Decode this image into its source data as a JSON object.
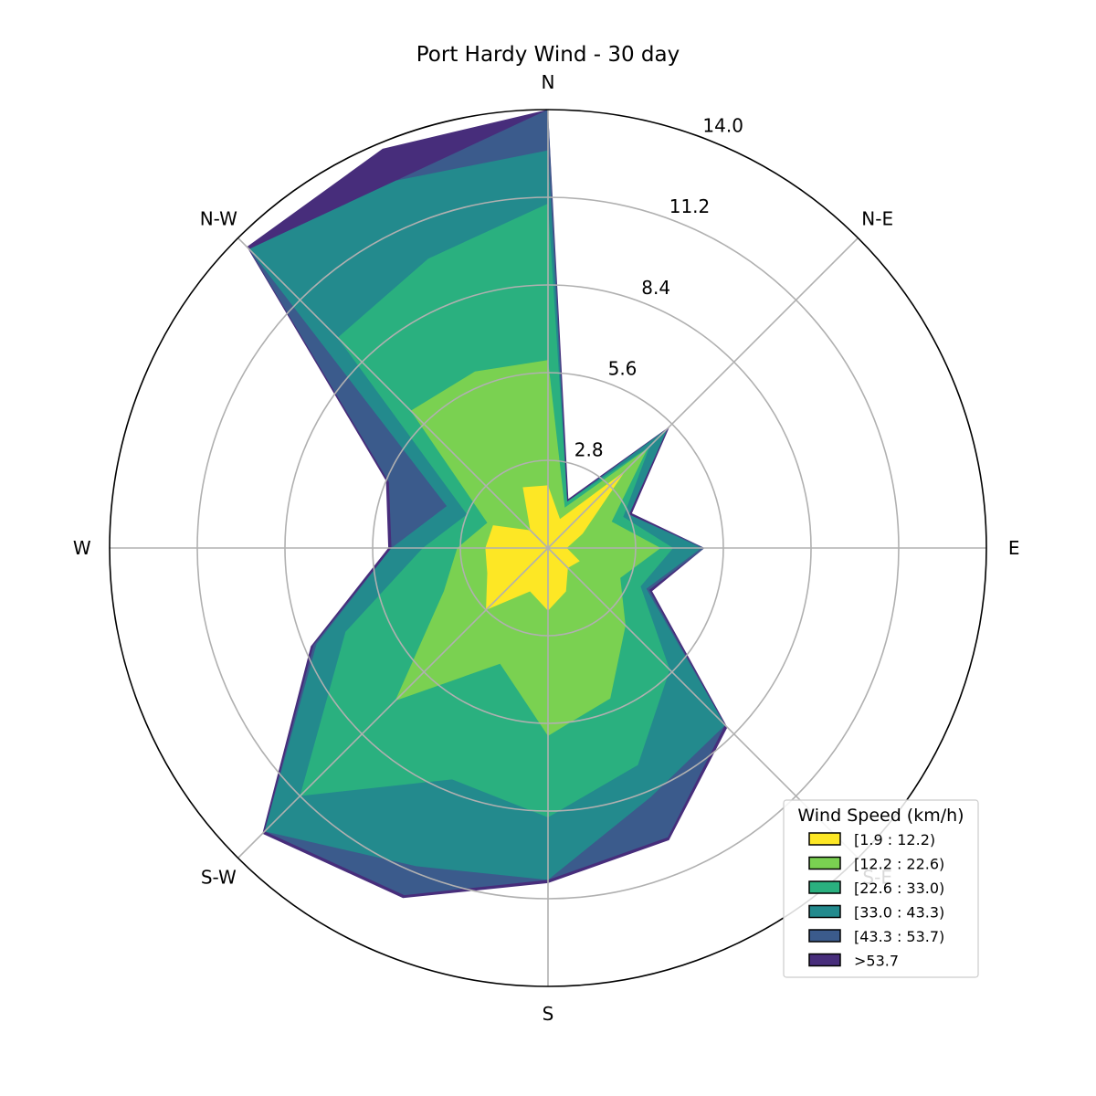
{
  "chart_data": {
    "type": "windrose",
    "title": "Port Hardy Wind - 30 day",
    "directions_labels": [
      "N",
      "N-E",
      "E",
      "S-E",
      "S",
      "S-W",
      "W",
      "N-W"
    ],
    "sector_angles_deg": [
      0,
      22.5,
      45,
      67.5,
      90,
      112.5,
      135,
      157.5,
      180,
      202.5,
      225,
      247.5,
      270,
      292.5,
      315,
      337.5
    ],
    "radial_ticks": [
      "2.8",
      "5.6",
      "8.4",
      "11.2",
      "14.0"
    ],
    "radial_tick_values": [
      2.8,
      5.6,
      8.4,
      11.2,
      14.0
    ],
    "rmax": 14.0,
    "grid": true,
    "legend": {
      "title": "Wind Speed (km/h)",
      "position": "bottom-right"
    },
    "series": [
      {
        "name": "[1.9 : 12.2)",
        "color": "#fde725",
        "values": [
          2.0,
          1.0,
          3.5,
          1.2,
          0.6,
          1.1,
          0.9,
          1.5,
          2.0,
          1.5,
          2.8,
          2.1,
          2.0,
          1.9,
          0.8,
          2.1
        ]
      },
      {
        "name": "[12.2 : 22.6)",
        "color": "#7ad151",
        "values": [
          6.0,
          1.4,
          4.5,
          2.2,
          3.6,
          2.5,
          3.5,
          5.2,
          6.0,
          4.0,
          6.9,
          3.6,
          2.9,
          2.1,
          6.2,
          6.1
        ]
      },
      {
        "name": "[22.6 : 33.0)",
        "color": "#2ab07f",
        "values": [
          11.0,
          1.6,
          4.6,
          2.6,
          4.0,
          3.2,
          5.5,
          7.5,
          8.6,
          8.0,
          11.2,
          7.0,
          4.0,
          2.8,
          9.5,
          10.0
        ]
      },
      {
        "name": "[33.0 : 43.3)",
        "color": "#238a8d",
        "values": [
          12.7,
          1.6,
          5.4,
          2.8,
          4.9,
          3.4,
          8.0,
          8.6,
          10.6,
          11.0,
          12.8,
          8.0,
          5.0,
          3.5,
          13.5,
          12.7
        ]
      },
      {
        "name": "[43.3 : 53.7)",
        "color": "#3b5b8c",
        "values": [
          14.0,
          1.6,
          5.4,
          2.8,
          5.0,
          3.5,
          8.0,
          10.0,
          10.6,
          12.0,
          12.8,
          8.1,
          5.0,
          5.5,
          13.5,
          12.7
        ]
      },
      {
        "name": ">53.7",
        "color": "#472d7b",
        "values": [
          14.0,
          1.7,
          5.5,
          2.9,
          5.0,
          3.6,
          8.1,
          10.1,
          10.7,
          12.1,
          12.9,
          8.2,
          5.1,
          5.6,
          13.6,
          13.8
        ]
      }
    ]
  }
}
